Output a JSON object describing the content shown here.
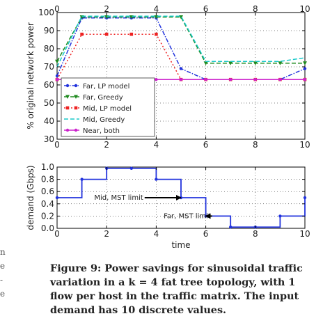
{
  "chart_data": [
    {
      "type": "line",
      "title": "",
      "xlabel": "",
      "ylabel": "% original network power",
      "xlim": [
        0,
        10
      ],
      "ylim": [
        30,
        100
      ],
      "xticks": [
        0,
        2,
        4,
        6,
        8,
        10
      ],
      "yticks": [
        30,
        40,
        50,
        60,
        70,
        80,
        90,
        100
      ],
      "xtick_labels": [
        "0",
        "2",
        "4",
        "6",
        "8",
        "10"
      ],
      "ytick_labels": [
        "30",
        "40",
        "50",
        "60",
        "70",
        "80",
        "90",
        "100"
      ],
      "grid": true,
      "legend_position": "bottom-left",
      "x": [
        0,
        1,
        2,
        3,
        4,
        5,
        6,
        7,
        8,
        9,
        10
      ],
      "series": [
        {
          "name": "Far, LP model",
          "color": "#2233dd",
          "dash": "dashdot",
          "marker": "dot",
          "values": [
            65,
            97,
            97,
            97,
            97,
            69,
            63,
            63,
            63,
            63,
            69
          ]
        },
        {
          "name": "Far, Greedy",
          "color": "#1e8a1e",
          "dash": "dashed",
          "marker": "triangle",
          "values": [
            73,
            97.5,
            97.5,
            97.5,
            97.5,
            97.5,
            72,
            72,
            72,
            72,
            72
          ]
        },
        {
          "name": "Mid, LP model",
          "color": "#ee2222",
          "dash": "dotted",
          "marker": "square",
          "values": [
            63,
            88,
            88,
            88,
            88,
            63,
            63,
            63,
            63,
            63,
            63
          ]
        },
        {
          "name": "Mid, Greedy",
          "color": "#18c9c9",
          "dash": "dashed",
          "marker": "none",
          "values": [
            70,
            98,
            98,
            98,
            98,
            98,
            73,
            73,
            73,
            73,
            75
          ]
        },
        {
          "name": "Near, both",
          "color": "#cc22cc",
          "dash": "solid",
          "marker": "dot",
          "values": [
            63,
            63,
            63,
            63,
            63,
            63,
            63,
            63,
            63,
            63,
            63
          ]
        }
      ]
    },
    {
      "type": "line",
      "title": "",
      "xlabel": "time",
      "ylabel": "demand (Gbps)",
      "xlim": [
        0,
        10
      ],
      "ylim": [
        0,
        1
      ],
      "xticks": [
        0,
        2,
        4,
        6,
        8,
        10
      ],
      "yticks": [
        0,
        0.2,
        0.4,
        0.6,
        0.8,
        1.0
      ],
      "xtick_labels": [
        "0",
        "2",
        "4",
        "6",
        "8",
        "10"
      ],
      "ytick_labels": [
        "0.0",
        "0.2",
        "0.4",
        "0.6",
        "0.8",
        "1.0"
      ],
      "grid": true,
      "step": "post",
      "x": [
        0,
        1,
        2,
        3,
        4,
        5,
        6,
        7,
        8,
        9,
        10
      ],
      "series": [
        {
          "color": "#2233dd",
          "values": [
            0.5,
            0.8,
            0.98,
            0.98,
            0.8,
            0.5,
            0.2,
            0.02,
            0.02,
            0.2,
            0.5
          ]
        }
      ],
      "annotations": [
        {
          "text": "Mid, MST limit",
          "x": 1.5,
          "y": 0.5,
          "arrow_to": [
            5,
            0.5
          ]
        },
        {
          "text": "Far, MST limit",
          "x": 4.3,
          "y": 0.2,
          "arrow_to": [
            6,
            0.2
          ]
        }
      ]
    }
  ],
  "caption": {
    "lines": [
      "Figure 9: Power savings for sinusoidal traffic",
      "variation in a k = 4 fat tree topology, with 1",
      "flow per host in the traffic matrix. The input",
      "demand has 10 discrete values."
    ]
  },
  "margin_fragment": [
    "n",
    "e",
    "-",
    "e"
  ]
}
